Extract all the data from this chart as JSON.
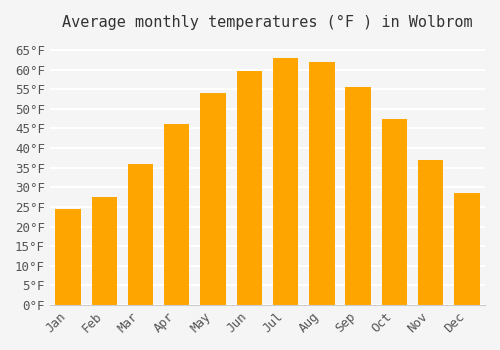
{
  "title": "Average monthly temperatures (°F ) in Wolbrom",
  "months": [
    "Jan",
    "Feb",
    "Mar",
    "Apr",
    "May",
    "Jun",
    "Jul",
    "Aug",
    "Sep",
    "Oct",
    "Nov",
    "Dec"
  ],
  "values": [
    24.5,
    27.5,
    36.0,
    46.0,
    54.0,
    59.5,
    63.0,
    62.0,
    55.5,
    47.5,
    37.0,
    28.5
  ],
  "bar_color": "#FFA500",
  "bar_edge_color": "#FFB733",
  "ylim": [
    0,
    68
  ],
  "yticks": [
    0,
    5,
    10,
    15,
    20,
    25,
    30,
    35,
    40,
    45,
    50,
    55,
    60,
    65
  ],
  "background_color": "#f5f5f5",
  "grid_color": "#ffffff",
  "title_fontsize": 11,
  "tick_fontsize": 9,
  "font_family": "monospace"
}
